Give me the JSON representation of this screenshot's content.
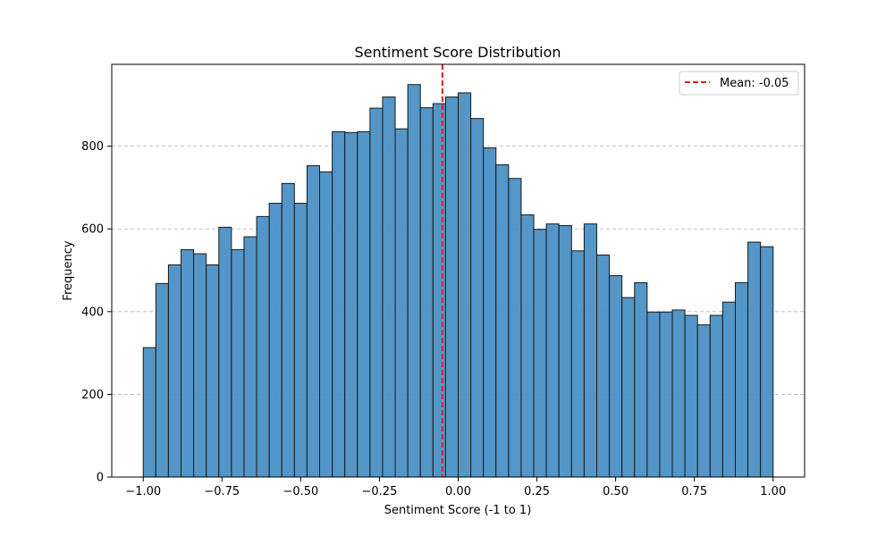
{
  "chart_data": {
    "type": "bar",
    "title": "Sentiment Score Distribution",
    "xlabel": "Sentiment Score (-1 to 1)",
    "ylabel": "Frequency",
    "xlim": [
      -1.1,
      1.1
    ],
    "ylim": [
      0,
      998
    ],
    "xticks": [
      "−1.00",
      "−0.75",
      "−0.50",
      "−0.25",
      "0.00",
      "0.25",
      "0.50",
      "0.75",
      "1.00"
    ],
    "xtick_values": [
      -1.0,
      -0.75,
      -0.5,
      -0.25,
      0.0,
      0.25,
      0.5,
      0.75,
      1.0
    ],
    "yticks": [
      "0",
      "200",
      "400",
      "600",
      "800"
    ],
    "ytick_values": [
      0,
      200,
      400,
      600,
      800
    ],
    "grid": "y-dashed",
    "bin_start": -1.0,
    "bin_end": 1.0,
    "bins": 50,
    "values": [
      313,
      468,
      513,
      550,
      540,
      513,
      604,
      550,
      581,
      630,
      662,
      710,
      662,
      753,
      738,
      835,
      833,
      835,
      892,
      919,
      842,
      949,
      893,
      903,
      919,
      929,
      867,
      796,
      755,
      722,
      634,
      599,
      612,
      608,
      547,
      612,
      537,
      487,
      434,
      470,
      399,
      399,
      404,
      391,
      368,
      391,
      423,
      470,
      568,
      557
    ],
    "mean_line": {
      "value": -0.05,
      "label": "Mean: -0.05",
      "color": "#e41a1c",
      "style": "dashed"
    },
    "legend": {
      "placement": "top-right",
      "entries": [
        "Mean: -0.05"
      ]
    },
    "bar_color": "#4a90c4",
    "edge_color": "#1a1a1a"
  }
}
